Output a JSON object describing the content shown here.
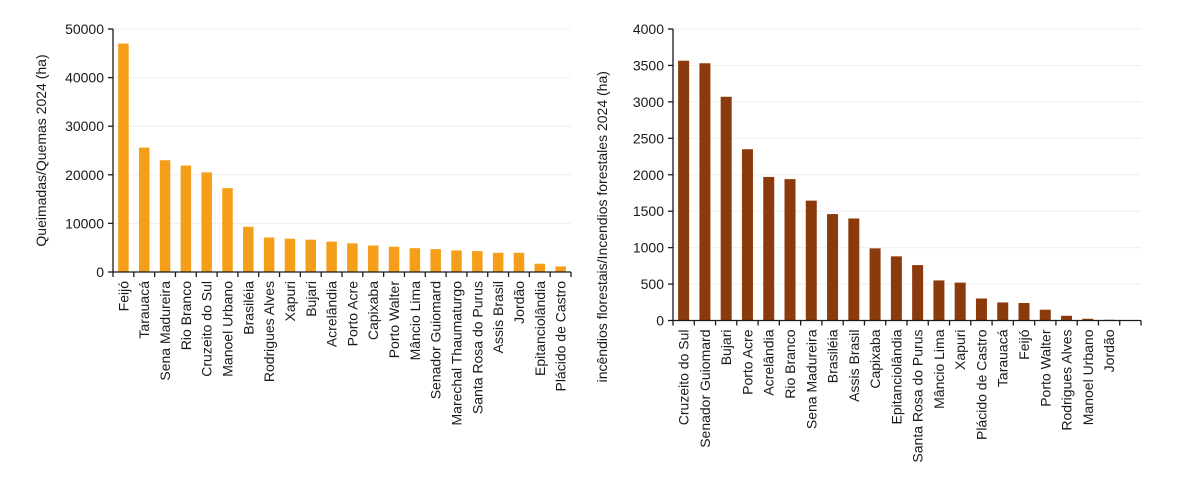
{
  "chart_data": [
    {
      "type": "bar",
      "title": "",
      "xlabel": "",
      "ylabel": "Queimadas/Quemas 2024 (ha)",
      "ylim": [
        0,
        50000
      ],
      "yticks": [
        0,
        10000,
        20000,
        30000,
        40000,
        50000
      ],
      "grid": true,
      "color": "#F59E1A",
      "categories": [
        "Feijó",
        "Tarauacá",
        "Sena Madureira",
        "Rio Branco",
        "Cruzeito do Sul",
        "Manoel Urbano",
        "Brasiléia",
        "Rodrigues Alves",
        "Xapuri",
        "Bujari",
        "Acrelândia",
        "Porto Acre",
        "Capixaba",
        "Porto Walter",
        "Mâncio Lima",
        "Senador Guiomard",
        "Marechal Thaumaturgo",
        "Santa Rosa do Purus",
        "Assis Brasil",
        "Jordão",
        "Epitanciolândia",
        "Plácido de Castro"
      ],
      "values": [
        47000,
        25600,
        23000,
        21900,
        20500,
        17250,
        9300,
        7100,
        6850,
        6650,
        6250,
        5900,
        5450,
        5200,
        4900,
        4700,
        4450,
        4300,
        3950,
        3950,
        1700,
        1150
      ]
    },
    {
      "type": "bar",
      "title": "",
      "xlabel": "",
      "ylabel": "incêndios florestais/Incendios forestales 2024 (ha)",
      "ylim": [
        0,
        4000
      ],
      "yticks": [
        0,
        500,
        1000,
        1500,
        2000,
        2500,
        3000,
        3500,
        4000
      ],
      "grid": true,
      "color": "#8B3A0C",
      "categories": [
        "Cruzeito do Sul",
        "Senador Guiomard",
        "Bujari",
        "Porto Acre",
        "Acrelândia",
        "Rio Branco",
        "Sena Madureira",
        "Brasiléia",
        "Assis Brasil",
        "Capixaba",
        "Epitanciolândia",
        "Santa Rosa do Purus",
        "Mâncio Lima",
        "Xapuri",
        "Plácido de Castro",
        "Tarauacá",
        "Feijó",
        "Porto Walter",
        "Rodrigues Alves",
        "Manoel Urbano",
        "Jordão"
      ],
      "values": [
        3565,
        3530,
        3070,
        2350,
        1970,
        1940,
        1645,
        1460,
        1400,
        990,
        880,
        760,
        550,
        520,
        302,
        248,
        240,
        148,
        65,
        24,
        10
      ]
    }
  ]
}
